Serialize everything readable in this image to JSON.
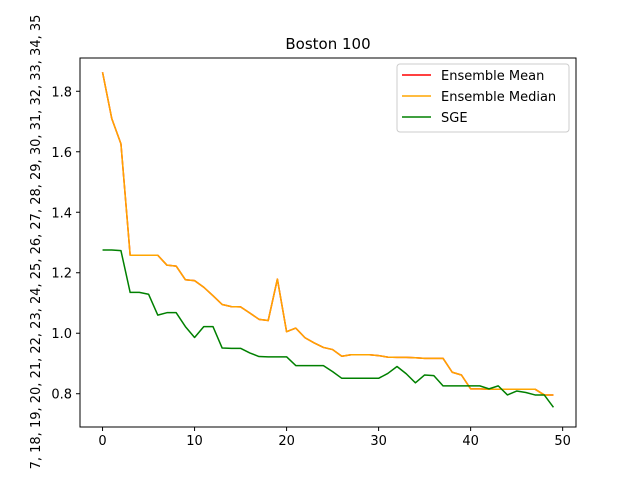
{
  "chart_data": {
    "type": "line",
    "title": "Boston 100",
    "xlabel": "",
    "ylabel": "7, 18, 19, 20, 21, 22, 23, 24, 25, 26, 27, 28, 29, 30, 31, 32, 33, 34, 35",
    "xlim": [
      -2.45,
      51.45
    ],
    "ylim": [
      0.69,
      1.91
    ],
    "xticks": [
      0,
      10,
      20,
      30,
      40,
      50
    ],
    "yticks": [
      0.8,
      1.0,
      1.2,
      1.4,
      1.6,
      1.8
    ],
    "ytick_labels": [
      "0.8",
      "1.0",
      "1.2",
      "1.4",
      "1.6",
      "1.8"
    ],
    "legend_position": "top-right",
    "grid": false,
    "x": [
      0,
      1,
      2,
      3,
      4,
      5,
      6,
      7,
      8,
      9,
      10,
      11,
      12,
      13,
      14,
      15,
      16,
      17,
      18,
      19,
      20,
      21,
      22,
      23,
      24,
      25,
      26,
      27,
      28,
      29,
      30,
      31,
      32,
      33,
      34,
      35,
      36,
      37,
      38,
      39,
      40,
      41,
      42,
      43,
      44,
      45,
      46,
      47,
      48,
      49
    ],
    "series": [
      {
        "name": "Ensemble Mean",
        "color": "#ff0000",
        "values": [
          1.863,
          1.71,
          1.626,
          1.258,
          1.258,
          1.258,
          1.258,
          1.225,
          1.222,
          1.177,
          1.174,
          1.152,
          1.124,
          1.095,
          1.088,
          1.087,
          1.067,
          1.046,
          1.042,
          1.179,
          1.005,
          1.017,
          0.985,
          0.968,
          0.953,
          0.946,
          0.924,
          0.929,
          0.929,
          0.929,
          0.926,
          0.921,
          0.92,
          0.92,
          0.919,
          0.917,
          0.917,
          0.917,
          0.871,
          0.862,
          0.816,
          0.816,
          0.815,
          0.815,
          0.815,
          0.815,
          0.815,
          0.815,
          0.796,
          0.796
        ]
      },
      {
        "name": "Ensemble Median",
        "color": "#ffa500",
        "values": [
          1.863,
          1.71,
          1.626,
          1.258,
          1.258,
          1.258,
          1.258,
          1.225,
          1.222,
          1.177,
          1.174,
          1.152,
          1.124,
          1.095,
          1.088,
          1.087,
          1.067,
          1.046,
          1.042,
          1.179,
          1.005,
          1.017,
          0.985,
          0.968,
          0.953,
          0.946,
          0.924,
          0.929,
          0.929,
          0.929,
          0.926,
          0.921,
          0.92,
          0.92,
          0.919,
          0.917,
          0.917,
          0.917,
          0.871,
          0.862,
          0.816,
          0.816,
          0.815,
          0.815,
          0.815,
          0.815,
          0.815,
          0.815,
          0.796,
          0.796
        ]
      },
      {
        "name": "SGE",
        "color": "#008000",
        "values": [
          1.275,
          1.275,
          1.273,
          1.135,
          1.135,
          1.129,
          1.06,
          1.068,
          1.068,
          1.022,
          0.986,
          1.022,
          1.022,
          0.951,
          0.95,
          0.95,
          0.935,
          0.923,
          0.922,
          0.922,
          0.922,
          0.893,
          0.893,
          0.893,
          0.893,
          0.873,
          0.851,
          0.851,
          0.851,
          0.851,
          0.851,
          0.867,
          0.89,
          0.866,
          0.836,
          0.862,
          0.86,
          0.826,
          0.826,
          0.826,
          0.826,
          0.826,
          0.816,
          0.826,
          0.796,
          0.809,
          0.804,
          0.796,
          0.796,
          0.755
        ]
      }
    ]
  }
}
